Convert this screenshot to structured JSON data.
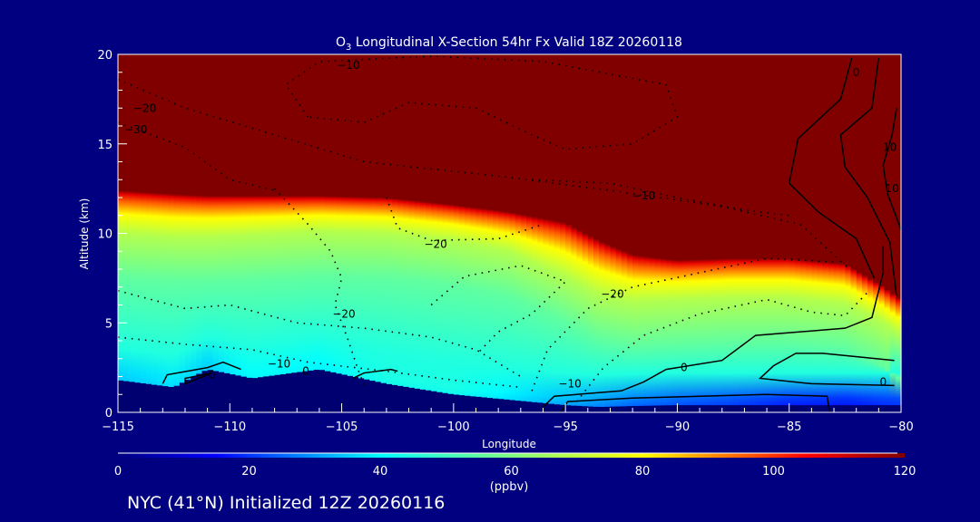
{
  "chart_data": {
    "type": "heatmap",
    "title": "O₃ Longitudinal X-Section 54hr  Fx Valid 18Z 20260118",
    "title_main": "O",
    "title_sub": "3",
    "title_rest": " Longitudinal X-Section 54hr  Fx Valid 18Z 20260118",
    "xlabel": "Longitude",
    "ylabel": "Altitude (km)",
    "xlim": [
      -115,
      -80
    ],
    "ylim": [
      0,
      20
    ],
    "xticks": [
      "−115",
      "−110",
      "−105",
      "−100",
      "−95",
      "−90",
      "−85",
      "−80"
    ],
    "xtick_values": [
      -115,
      -110,
      -105,
      -100,
      -95,
      -90,
      -85,
      -80
    ],
    "yticks": [
      "0",
      "5",
      "10",
      "15",
      "20"
    ],
    "ytick_values": [
      0,
      5,
      10,
      15,
      20
    ],
    "colorbar": {
      "label": "(ppbv)",
      "range": [
        0,
        120
      ],
      "ticks": [
        "0",
        "20",
        "40",
        "60",
        "80",
        "100",
        "120"
      ],
      "tick_values": [
        0,
        20,
        40,
        60,
        80,
        100,
        120
      ],
      "colors": [
        [
          0,
          "#000080"
        ],
        [
          15,
          "#0000ff"
        ],
        [
          40,
          "#00ffff"
        ],
        [
          60,
          "#80ff80"
        ],
        [
          80,
          "#ffff00"
        ],
        [
          92,
          "#ff8000"
        ],
        [
          105,
          "#ff0000"
        ],
        [
          120,
          "#800000"
        ]
      ]
    },
    "field_columns": {
      "lon": [
        -115,
        -112.5,
        -111,
        -109,
        -106,
        -103,
        -100,
        -97.5,
        -95,
        -93.5,
        -92,
        -90,
        -87.5,
        -85,
        -82.5,
        -81,
        -80
      ],
      "tropopause_km": [
        12.4,
        12.2,
        12.1,
        12.1,
        12.1,
        12.0,
        11.6,
        11.2,
        10.6,
        9.6,
        8.8,
        8.5,
        8.6,
        8.6,
        8.3,
        7.2,
        6.3
      ],
      "transition_km": [
        2.4,
        2.4,
        2.3,
        2.2,
        2.0,
        2.0,
        2.0,
        2.2,
        3.0,
        3.0,
        2.6,
        2.2,
        2.2,
        2.2,
        2.2,
        2.0,
        2.0
      ],
      "terrain_km": [
        1.8,
        1.4,
        2.4,
        1.9,
        2.4,
        1.6,
        1.0,
        0.7,
        0.4,
        0.3,
        0.35,
        0.4,
        0.4,
        0.4,
        0.4,
        0.4,
        0.4
      ],
      "surface_ppbv": [
        30,
        32,
        30,
        35,
        34,
        38,
        38,
        33,
        28,
        25,
        22,
        20,
        18,
        15,
        14,
        16,
        17
      ]
    },
    "contours": [
      {
        "level": -10,
        "style": "dotted",
        "points": [
          [
            -106.5,
            16.5
          ],
          [
            -107.5,
            18.3
          ],
          [
            -106,
            19.6
          ],
          [
            -101,
            19.9
          ],
          [
            -96,
            19.6
          ],
          [
            -90.5,
            18.3
          ],
          [
            -90,
            16.5
          ],
          [
            -92,
            15
          ],
          [
            -95,
            14.7
          ],
          [
            -96.5,
            15.5
          ],
          [
            -99,
            17
          ],
          [
            -102,
            17.3
          ],
          [
            -104,
            16.2
          ],
          [
            -106.5,
            16.5
          ]
        ]
      },
      {
        "level": -20,
        "style": "dotted",
        "points": [
          [
            -115,
            18.6
          ],
          [
            -112,
            17
          ],
          [
            -108,
            15.5
          ],
          [
            -104,
            14
          ],
          [
            -98,
            13.2
          ],
          [
            -93,
            12.4
          ],
          [
            -88,
            11.5
          ],
          [
            -84.5,
            10.5
          ],
          [
            -82.3,
            8
          ]
        ]
      },
      {
        "level": -30,
        "style": "dotted",
        "points": [
          [
            -115,
            16.2
          ],
          [
            -112,
            14.8
          ],
          [
            -110,
            13
          ],
          [
            -108,
            12.4
          ]
        ]
      },
      {
        "level": -20,
        "style": "dotted",
        "points": [
          [
            -108,
            12.5
          ],
          [
            -106.5,
            10.5
          ],
          [
            -105.5,
            9
          ],
          [
            -105,
            7.5
          ],
          [
            -105.3,
            6
          ],
          [
            -104.7,
            4
          ],
          [
            -104.3,
            2.5
          ],
          [
            -104,
            1.5
          ]
        ]
      },
      {
        "level": -20,
        "style": "dotted",
        "points": [
          [
            -103,
            12
          ],
          [
            -102.5,
            10.3
          ],
          [
            -101,
            9.6
          ],
          [
            -98,
            9.7
          ],
          [
            -96,
            10.5
          ]
        ]
      },
      {
        "level": -10,
        "style": "dotted",
        "points": [
          [
            -115,
            4.2
          ],
          [
            -112,
            3.8
          ],
          [
            -109,
            3.5
          ],
          [
            -106.5,
            2.8
          ],
          [
            -103,
            2.3
          ],
          [
            -100,
            1.8
          ],
          [
            -97,
            1.4
          ]
        ]
      },
      {
        "level": -20,
        "style": "dotted",
        "points": [
          [
            -115,
            6.8
          ],
          [
            -112,
            5.8
          ],
          [
            -110,
            6.0
          ],
          [
            -107,
            5.0
          ],
          [
            -104,
            4.7
          ],
          [
            -101,
            4.2
          ],
          [
            -99,
            3.5
          ],
          [
            -97,
            2
          ]
        ]
      },
      {
        "level": -20,
        "style": "dotted",
        "points": [
          [
            -101,
            6.0
          ],
          [
            -99.5,
            7.6
          ],
          [
            -97,
            8.2
          ],
          [
            -95,
            7.3
          ],
          [
            -96.5,
            5.5
          ],
          [
            -98,
            4.5
          ],
          [
            -99,
            3.2
          ]
        ]
      },
      {
        "level": -20,
        "style": "dotted",
        "points": [
          [
            -96.5,
            1.2
          ],
          [
            -95.8,
            3.5
          ],
          [
            -94,
            5.8
          ],
          [
            -92,
            7.0
          ],
          [
            -89,
            7.8
          ],
          [
            -86,
            8.6
          ],
          [
            -83,
            8.4
          ]
        ]
      },
      {
        "level": -10,
        "style": "dotted",
        "points": [
          [
            -94.5,
            0.6
          ],
          [
            -93.3,
            2.5
          ],
          [
            -91.5,
            4.3
          ],
          [
            -89,
            5.5
          ],
          [
            -86,
            6.3
          ],
          [
            -84,
            5.6
          ],
          [
            -82.5,
            5.4
          ],
          [
            -81.5,
            6.7
          ]
        ]
      },
      {
        "level": -10,
        "style": "dotted",
        "points": [
          [
            -96.5,
            13
          ],
          [
            -93,
            12.8
          ],
          [
            -90,
            12
          ],
          [
            -87,
            11.3
          ],
          [
            -85,
            11
          ]
        ]
      },
      {
        "level": 0,
        "style": "solid",
        "points": [
          [
            -96,
            0.3
          ],
          [
            -95.5,
            0.9
          ],
          [
            -92.5,
            1.2
          ],
          [
            -91.5,
            1.7
          ],
          [
            -90.5,
            2.4
          ],
          [
            -88,
            2.9
          ],
          [
            -86.5,
            4.3
          ],
          [
            -82.5,
            4.7
          ],
          [
            -81.3,
            5.3
          ],
          [
            -80.8,
            7.8
          ],
          [
            -80.8,
            9.3
          ]
        ]
      },
      {
        "level": 0,
        "style": "solid",
        "points": [
          [
            -81.2,
            7.5
          ],
          [
            -82,
            9.7
          ],
          [
            -83.7,
            11.2
          ],
          [
            -85,
            12.8
          ],
          [
            -84.6,
            15.3
          ],
          [
            -82.7,
            17.5
          ],
          [
            -82.2,
            19.8
          ]
        ]
      },
      {
        "level": 10,
        "style": "solid",
        "points": [
          [
            -80.2,
            6.5
          ],
          [
            -80.5,
            9.5
          ],
          [
            -81.5,
            12
          ],
          [
            -82.5,
            13.7
          ],
          [
            -82.7,
            15.5
          ],
          [
            -81.3,
            17
          ],
          [
            -81,
            19.8
          ]
        ]
      },
      {
        "level": 10,
        "style": "solid",
        "points": [
          [
            -80,
            10.2
          ],
          [
            -80.6,
            12.2
          ],
          [
            -80.8,
            13.8
          ],
          [
            -80.4,
            15.5
          ],
          [
            -80.2,
            17
          ]
        ]
      },
      {
        "level": 0,
        "style": "solid",
        "points": [
          [
            -80.3,
            2.9
          ],
          [
            -83.5,
            3.3
          ],
          [
            -84.7,
            3.3
          ],
          [
            -85.7,
            2.6
          ],
          [
            -86.3,
            1.9
          ],
          [
            -84,
            1.6
          ],
          [
            -80.3,
            1.5
          ]
        ]
      },
      {
        "level": 0,
        "style": "solid",
        "points": [
          [
            -95.2,
            0
          ],
          [
            -94.9,
            0.6
          ],
          [
            -92,
            0.8
          ],
          [
            -86,
            1.0
          ],
          [
            -83.3,
            0.9
          ],
          [
            -83.2,
            0
          ]
        ]
      },
      {
        "level": 0,
        "style": "solid",
        "points": [
          [
            -113,
            1.6
          ],
          [
            -112.8,
            2.1
          ],
          [
            -111,
            2.5
          ],
          [
            -110.3,
            2.8
          ],
          [
            -109.5,
            2.4
          ]
        ]
      },
      {
        "level": 0,
        "style": "solid",
        "points": [
          [
            -112,
            1.6
          ],
          [
            -112,
            1.9
          ],
          [
            -110.8,
            2.2
          ],
          [
            -112,
            1.6
          ]
        ]
      },
      {
        "level": 0,
        "style": "solid",
        "points": [
          [
            -104.5,
            1.9
          ],
          [
            -104,
            2.2
          ],
          [
            -102.8,
            2.4
          ],
          [
            -102.5,
            2.3
          ]
        ]
      }
    ],
    "contour_labels": [
      {
        "text": "−10",
        "lon": -104.7,
        "alt": 19.4
      },
      {
        "text": "−20",
        "lon": -113.8,
        "alt": 17.0
      },
      {
        "text": "−30",
        "lon": -114.2,
        "alt": 15.8
      },
      {
        "text": "−10",
        "lon": -91.5,
        "alt": 12.1
      },
      {
        "text": "−20",
        "lon": -100.8,
        "alt": 9.4
      },
      {
        "text": "−20",
        "lon": -104.9,
        "alt": 5.5
      },
      {
        "text": "−20",
        "lon": -92.9,
        "alt": 6.6
      },
      {
        "text": "−10",
        "lon": -107.8,
        "alt": 2.7
      },
      {
        "text": "0",
        "lon": -110.8,
        "alt": 2.1
      },
      {
        "text": "0",
        "lon": -106.6,
        "alt": 2.3
      },
      {
        "text": "−10",
        "lon": -94.8,
        "alt": 1.6
      },
      {
        "text": "0",
        "lon": -89.7,
        "alt": 2.5
      },
      {
        "text": "0",
        "lon": -80.8,
        "alt": 1.7
      },
      {
        "text": "10",
        "lon": -80.5,
        "alt": 14.8
      },
      {
        "text": "10",
        "lon": -80.4,
        "alt": 12.5
      },
      {
        "text": "0",
        "lon": -82.0,
        "alt": 19.0
      }
    ]
  },
  "footer": {
    "location": "NYC (41°N) Initialized 12Z 20260116"
  }
}
